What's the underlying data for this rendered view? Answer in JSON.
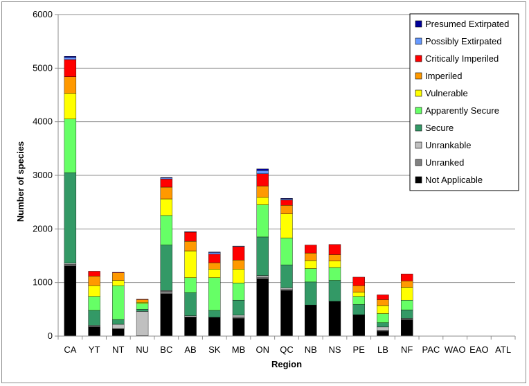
{
  "chart_data": {
    "type": "bar",
    "stacked": true,
    "title": "",
    "xlabel": "Region",
    "ylabel": "Number of species",
    "ylim": [
      0,
      6000
    ],
    "yticks": [
      0,
      1000,
      2000,
      3000,
      4000,
      5000,
      6000
    ],
    "grid": true,
    "legend_position": "top-right",
    "categories": [
      "CA",
      "YT",
      "NT",
      "NU",
      "BC",
      "AB",
      "SK",
      "MB",
      "ON",
      "QC",
      "NB",
      "NS",
      "PE",
      "LB",
      "NF",
      "PAC",
      "WAO",
      "EAO",
      "ATL"
    ],
    "series": [
      {
        "name": "Not Applicable",
        "color": "#000000",
        "values": [
          1310,
          170,
          130,
          0,
          790,
          350,
          350,
          330,
          1070,
          850,
          580,
          650,
          400,
          90,
          300,
          0,
          0,
          0,
          0
        ]
      },
      {
        "name": "Unranked",
        "color": "#808080",
        "values": [
          30,
          10,
          10,
          10,
          50,
          10,
          0,
          30,
          30,
          20,
          0,
          0,
          0,
          20,
          20,
          0,
          0,
          0,
          0
        ]
      },
      {
        "name": "Unrankable",
        "color": "#c0c0c0",
        "values": [
          20,
          20,
          80,
          450,
          10,
          20,
          0,
          30,
          30,
          30,
          0,
          0,
          0,
          60,
          10,
          0,
          0,
          0,
          0
        ]
      },
      {
        "name": "Secure",
        "color": "#339966",
        "values": [
          1690,
          280,
          90,
          40,
          850,
          430,
          130,
          280,
          720,
          430,
          430,
          390,
          190,
          80,
          160,
          0,
          0,
          0,
          0
        ]
      },
      {
        "name": "Apparently Secure",
        "color": "#66ff66",
        "values": [
          1000,
          260,
          630,
          110,
          550,
          280,
          610,
          320,
          600,
          500,
          250,
          240,
          150,
          170,
          180,
          0,
          0,
          0,
          0
        ]
      },
      {
        "name": "Vulnerable",
        "color": "#ffff00",
        "values": [
          480,
          200,
          100,
          20,
          310,
          500,
          160,
          260,
          140,
          450,
          150,
          120,
          80,
          150,
          240,
          0,
          0,
          0,
          0
        ]
      },
      {
        "name": "Imperiled",
        "color": "#ff9900",
        "values": [
          310,
          180,
          140,
          50,
          220,
          180,
          120,
          170,
          210,
          160,
          140,
          120,
          120,
          110,
          120,
          0,
          0,
          0,
          0
        ]
      },
      {
        "name": "Critically Imperiled",
        "color": "#ff0000",
        "values": [
          320,
          90,
          10,
          10,
          150,
          170,
          160,
          250,
          230,
          100,
          150,
          190,
          160,
          90,
          130,
          0,
          0,
          0,
          0
        ]
      },
      {
        "name": "Possibly Extirpated",
        "color": "#6699ff",
        "values": [
          40,
          0,
          0,
          0,
          20,
          10,
          30,
          10,
          60,
          20,
          0,
          0,
          0,
          0,
          0,
          0,
          0,
          0,
          0
        ]
      },
      {
        "name": "Presumed Extirpated",
        "color": "#000099",
        "values": [
          20,
          0,
          0,
          0,
          10,
          0,
          10,
          0,
          30,
          10,
          0,
          0,
          0,
          0,
          0,
          0,
          0,
          0,
          0
        ]
      }
    ]
  }
}
